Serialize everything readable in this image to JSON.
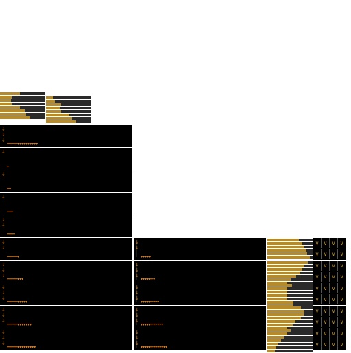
{
  "colors": {
    "accent": "#b58a2a",
    "marker": "#d17a1e",
    "panel_bg": "#000000",
    "track": "#2a2a2a"
  },
  "icons": {
    "arrow": "down-arrow-icon",
    "tick": "triangle-icon",
    "chevron": "chevron-icon"
  },
  "top_bars": [
    {
      "levels": [
        0.44,
        0.26,
        0.24,
        0.26,
        0.44,
        0.54,
        0.58,
        0.66
      ]
    },
    {
      "levels": [
        0.16,
        0.2,
        0.34,
        0.3,
        0.34,
        0.52,
        0.58,
        0.66
      ]
    }
  ],
  "left_panels": [
    {
      "ticks": 15,
      "arrows": 3
    },
    {
      "ticks": 1,
      "arrows": 1
    },
    {
      "ticks": 2,
      "arrows": 1
    },
    {
      "ticks": 3,
      "arrows": 1
    },
    {
      "ticks": 4,
      "arrows": 2
    },
    {
      "ticks": 6,
      "arrows": 2
    },
    {
      "ticks": 8,
      "arrows": 3
    },
    {
      "ticks": 10,
      "arrows": 3
    },
    {
      "ticks": 12,
      "arrows": 3
    },
    {
      "ticks": 14,
      "arrows": 3
    }
  ],
  "mid_panels": [
    {
      "ticks": 5,
      "arrows": 2
    },
    {
      "ticks": 7,
      "arrows": 3
    },
    {
      "ticks": 9,
      "arrows": 3
    },
    {
      "ticks": 11,
      "arrows": 3
    },
    {
      "ticks": 13,
      "arrows": 3
    }
  ],
  "right_bars": [
    {
      "levels": [
        0.7,
        0.78,
        0.82,
        0.86,
        0.88,
        0.94
      ]
    },
    {
      "levels": [
        0.9,
        0.82,
        0.78,
        0.72,
        0.64,
        0.52,
        0.44,
        0.66
      ]
    },
    {
      "levels": [
        0.54,
        0.44,
        0.44,
        0.44,
        0.44,
        0.58,
        0.58
      ]
    },
    {
      "levels": [
        0.74,
        0.82,
        0.8,
        0.74,
        0.62,
        0.56,
        0.44,
        0.64
      ]
    },
    {
      "levels": [
        0.52,
        0.44,
        0.36,
        0.3,
        0.24,
        0.2,
        0.16
      ]
    }
  ]
}
